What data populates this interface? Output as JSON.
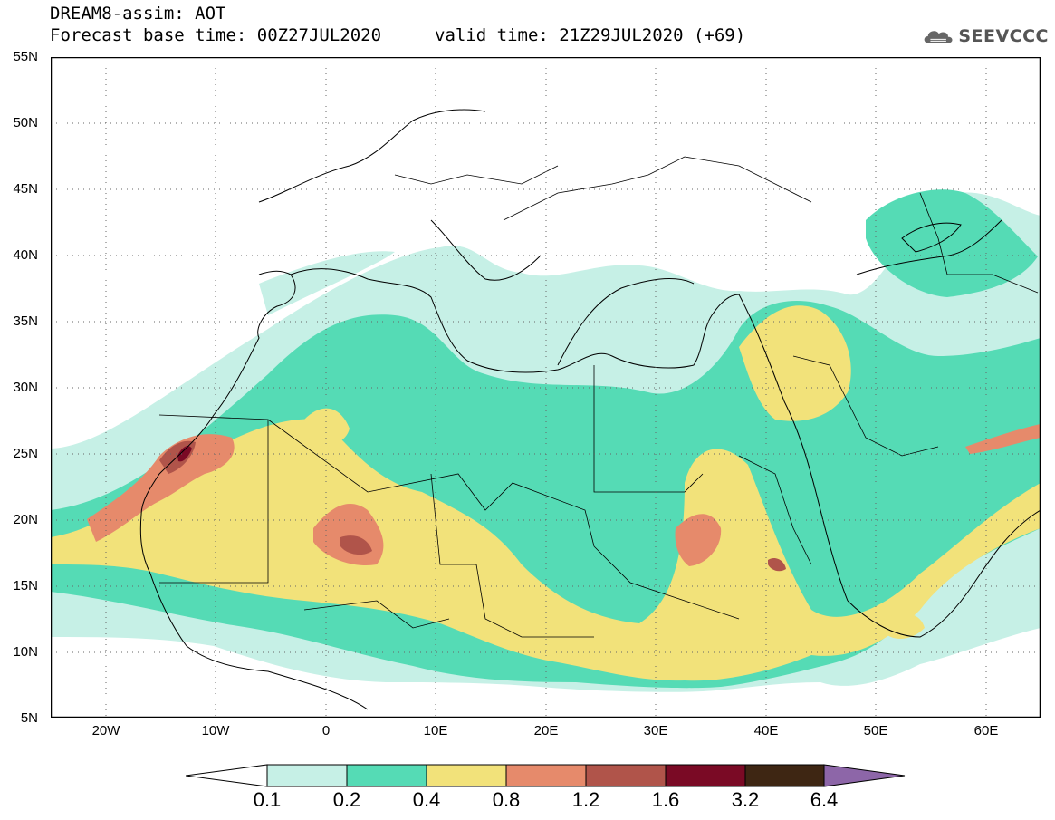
{
  "header": {
    "title": "DREAM8-assim: AOT",
    "base_time": "Forecast base time: 00Z27JUL2020",
    "valid_time": "valid time: 21Z29JUL2020 (+69)",
    "logo_text": "SEEVCCC"
  },
  "map": {
    "variable": "AOT",
    "lat_range": [
      5,
      55
    ],
    "lon_range": [
      -25,
      65
    ],
    "lat_labels": [
      "55N",
      "50N",
      "45N",
      "40N",
      "35N",
      "30N",
      "25N",
      "20N",
      "15N",
      "10N",
      "5N"
    ],
    "lon_labels": [
      "20W",
      "10W",
      "0",
      "10E",
      "20E",
      "30E",
      "40E",
      "50E",
      "60E"
    ]
  },
  "legend": {
    "levels": [
      "0.1",
      "0.2",
      "0.4",
      "0.8",
      "1.2",
      "1.6",
      "3.2",
      "6.4"
    ],
    "colors": [
      "#ffffff",
      "#c6f0e6",
      "#55dbb5",
      "#f2e27a",
      "#e68a6b",
      "#b0544a",
      "#7a0a25",
      "#3e2613",
      "#8d66a8"
    ]
  }
}
